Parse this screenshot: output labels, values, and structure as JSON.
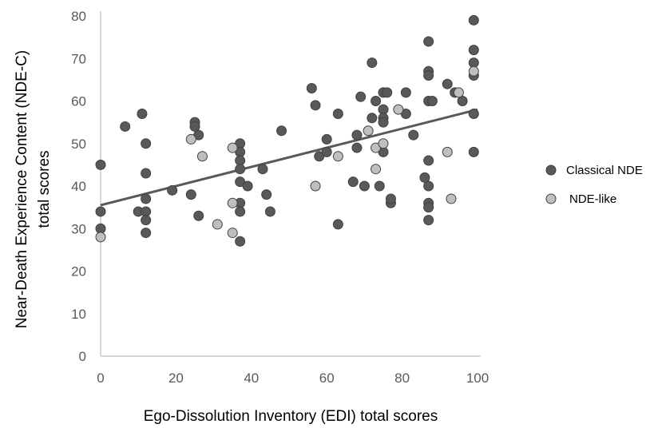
{
  "chart_data": {
    "type": "scatter",
    "title": "",
    "xlabel": "Ego-Dissolution Inventory (EDI) total scores",
    "ylabel_lines": [
      "Near-Death Experience Content (NDE-C)",
      "total scores"
    ],
    "xlim": [
      0,
      100
    ],
    "ylim": [
      0,
      80
    ],
    "x_ticks": [
      0,
      20,
      40,
      60,
      80,
      100
    ],
    "y_ticks": [
      0,
      10,
      20,
      30,
      40,
      50,
      60,
      70,
      80
    ],
    "grid": false,
    "legend_position": "right",
    "trendline": {
      "x": [
        0,
        100
      ],
      "y": [
        35.5,
        58
      ]
    },
    "colors": {
      "classical": "#595959",
      "ndelike": "#bfbfbf",
      "trendline": "#595959",
      "axis": "#bfbfbf"
    },
    "series": [
      {
        "name": "Classical NDE",
        "color": "#595959",
        "points": [
          [
            0,
            45
          ],
          [
            0,
            34
          ],
          [
            0,
            30
          ],
          [
            6.5,
            54
          ],
          [
            10,
            34
          ],
          [
            11,
            57
          ],
          [
            12,
            50
          ],
          [
            12,
            43
          ],
          [
            12,
            37
          ],
          [
            12,
            34
          ],
          [
            12,
            32
          ],
          [
            12,
            29
          ],
          [
            19,
            39
          ],
          [
            24,
            38
          ],
          [
            25,
            55
          ],
          [
            25,
            54
          ],
          [
            26,
            52
          ],
          [
            26,
            33
          ],
          [
            37,
            50
          ],
          [
            37,
            48
          ],
          [
            37,
            46
          ],
          [
            37,
            44
          ],
          [
            37,
            41
          ],
          [
            37,
            36
          ],
          [
            37,
            34
          ],
          [
            37,
            27
          ],
          [
            39,
            40
          ],
          [
            43,
            44
          ],
          [
            44,
            38
          ],
          [
            45,
            34
          ],
          [
            48,
            53
          ],
          [
            56,
            63
          ],
          [
            57,
            59
          ],
          [
            58,
            47
          ],
          [
            60,
            51
          ],
          [
            60,
            48
          ],
          [
            63,
            57
          ],
          [
            63,
            31
          ],
          [
            67,
            41
          ],
          [
            68,
            52
          ],
          [
            68,
            49
          ],
          [
            69,
            61
          ],
          [
            70,
            40
          ],
          [
            72,
            69
          ],
          [
            72,
            56
          ],
          [
            73,
            60
          ],
          [
            74,
            40
          ],
          [
            75,
            62
          ],
          [
            75,
            58
          ],
          [
            75,
            56
          ],
          [
            75,
            55
          ],
          [
            75,
            48
          ],
          [
            76,
            62
          ],
          [
            77,
            36
          ],
          [
            77,
            37
          ],
          [
            81,
            62
          ],
          [
            81,
            57
          ],
          [
            83,
            52
          ],
          [
            86,
            42
          ],
          [
            87,
            74
          ],
          [
            87,
            67
          ],
          [
            87,
            66
          ],
          [
            87,
            60
          ],
          [
            87,
            46
          ],
          [
            87,
            40
          ],
          [
            87,
            36
          ],
          [
            87,
            35
          ],
          [
            87,
            32
          ],
          [
            88,
            60
          ],
          [
            92,
            64
          ],
          [
            94,
            62
          ],
          [
            96,
            60
          ],
          [
            99,
            79
          ],
          [
            99,
            72
          ],
          [
            99,
            69
          ],
          [
            99,
            66
          ],
          [
            99,
            57
          ],
          [
            99,
            48
          ]
        ]
      },
      {
        "name": "NDE-like",
        "color": "#bfbfbf",
        "points": [
          [
            0,
            28
          ],
          [
            24,
            51
          ],
          [
            27,
            47
          ],
          [
            31,
            31
          ],
          [
            35,
            49
          ],
          [
            35,
            36
          ],
          [
            35,
            29
          ],
          [
            57,
            40
          ],
          [
            63,
            47
          ],
          [
            71,
            53
          ],
          [
            73,
            49
          ],
          [
            73,
            44
          ],
          [
            75,
            50
          ],
          [
            79,
            58
          ],
          [
            92,
            48
          ],
          [
            93,
            37
          ],
          [
            95,
            62
          ],
          [
            99,
            67
          ]
        ]
      }
    ]
  }
}
